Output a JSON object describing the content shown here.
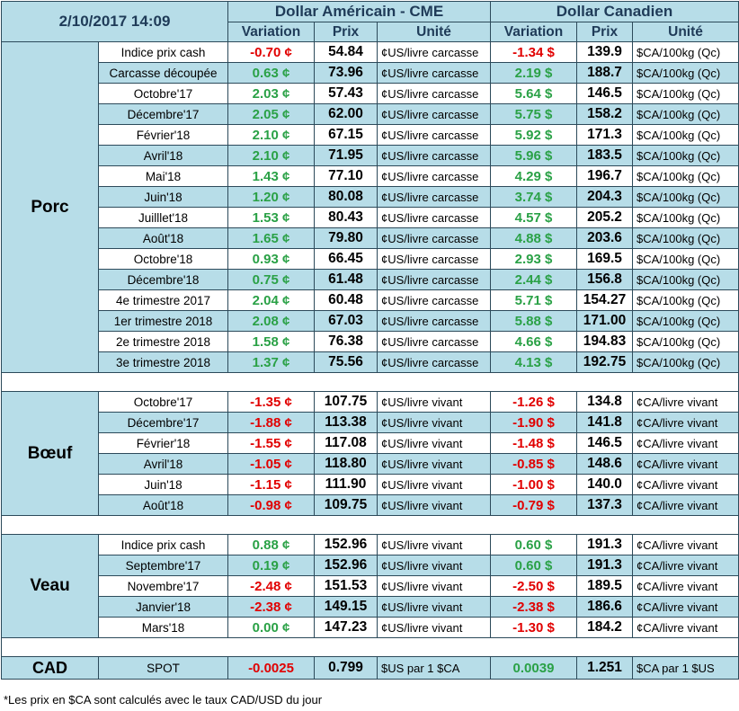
{
  "header": {
    "date": "2/10/2017 14:09",
    "usd_title": "Dollar Américain - CME",
    "cad_title": "Dollar Canadien",
    "col_variation": "Variation",
    "col_prix": "Prix",
    "col_unite": "Unité"
  },
  "sections": {
    "porc": {
      "name": "Porc",
      "rows": [
        {
          "label": "Indice prix cash",
          "usd_var": "-0.70 ¢",
          "usd_price": "54.84",
          "usd_unit": "¢US/livre carcasse",
          "cad_var": "-1.34 $",
          "cad_price": "139.9",
          "cad_unit": "$CA/100kg (Qc)"
        },
        {
          "label": "Carcasse découpée",
          "usd_var": "0.63 ¢",
          "usd_price": "73.96",
          "usd_unit": "¢US/livre carcasse",
          "cad_var": "2.19 $",
          "cad_price": "188.7",
          "cad_unit": "$CA/100kg (Qc)"
        },
        {
          "label": "Octobre'17",
          "usd_var": "2.03 ¢",
          "usd_price": "57.43",
          "usd_unit": "¢US/livre carcasse",
          "cad_var": "5.64 $",
          "cad_price": "146.5",
          "cad_unit": "$CA/100kg (Qc)"
        },
        {
          "label": "Décembre'17",
          "usd_var": "2.05 ¢",
          "usd_price": "62.00",
          "usd_unit": "¢US/livre carcasse",
          "cad_var": "5.75 $",
          "cad_price": "158.2",
          "cad_unit": "$CA/100kg (Qc)"
        },
        {
          "label": "Février'18",
          "usd_var": "2.10 ¢",
          "usd_price": "67.15",
          "usd_unit": "¢US/livre carcasse",
          "cad_var": "5.92 $",
          "cad_price": "171.3",
          "cad_unit": "$CA/100kg (Qc)"
        },
        {
          "label": "Avril'18",
          "usd_var": "2.10 ¢",
          "usd_price": "71.95",
          "usd_unit": "¢US/livre carcasse",
          "cad_var": "5.96 $",
          "cad_price": "183.5",
          "cad_unit": "$CA/100kg (Qc)"
        },
        {
          "label": "Mai'18",
          "usd_var": "1.43 ¢",
          "usd_price": "77.10",
          "usd_unit": "¢US/livre carcasse",
          "cad_var": "4.29 $",
          "cad_price": "196.7",
          "cad_unit": "$CA/100kg (Qc)"
        },
        {
          "label": "Juin'18",
          "usd_var": "1.20 ¢",
          "usd_price": "80.08",
          "usd_unit": "¢US/livre carcasse",
          "cad_var": "3.74 $",
          "cad_price": "204.3",
          "cad_unit": "$CA/100kg (Qc)"
        },
        {
          "label": "Juilllet'18",
          "usd_var": "1.53 ¢",
          "usd_price": "80.43",
          "usd_unit": "¢US/livre carcasse",
          "cad_var": "4.57 $",
          "cad_price": "205.2",
          "cad_unit": "$CA/100kg (Qc)"
        },
        {
          "label": "Août'18",
          "usd_var": "1.65 ¢",
          "usd_price": "79.80",
          "usd_unit": "¢US/livre carcasse",
          "cad_var": "4.88 $",
          "cad_price": "203.6",
          "cad_unit": "$CA/100kg (Qc)"
        },
        {
          "label": "Octobre'18",
          "usd_var": "0.93 ¢",
          "usd_price": "66.45",
          "usd_unit": "¢US/livre carcasse",
          "cad_var": "2.93 $",
          "cad_price": "169.5",
          "cad_unit": "$CA/100kg (Qc)"
        },
        {
          "label": "Décembre'18",
          "usd_var": "0.75 ¢",
          "usd_price": "61.48",
          "usd_unit": "¢US/livre carcasse",
          "cad_var": "2.44 $",
          "cad_price": "156.8",
          "cad_unit": "$CA/100kg (Qc)"
        },
        {
          "label": "4e trimestre 2017",
          "usd_var": "2.04 ¢",
          "usd_price": "60.48",
          "usd_unit": "¢US/livre carcasse",
          "cad_var": "5.71 $",
          "cad_price": "154.27",
          "cad_unit": "$CA/100kg (Qc)"
        },
        {
          "label": "1er trimestre 2018",
          "usd_var": "2.08 ¢",
          "usd_price": "67.03",
          "usd_unit": "¢US/livre carcasse",
          "cad_var": "5.88 $",
          "cad_price": "171.00",
          "cad_unit": "$CA/100kg (Qc)"
        },
        {
          "label": "2e trimestre 2018",
          "usd_var": "1.58 ¢",
          "usd_price": "76.38",
          "usd_unit": "¢US/livre carcasse",
          "cad_var": "4.66 $",
          "cad_price": "194.83",
          "cad_unit": "$CA/100kg (Qc)"
        },
        {
          "label": "3e trimestre 2018",
          "usd_var": "1.37 ¢",
          "usd_price": "75.56",
          "usd_unit": "¢US/livre carcasse",
          "cad_var": "4.13 $",
          "cad_price": "192.75",
          "cad_unit": "$CA/100kg (Qc)"
        }
      ]
    },
    "boeuf": {
      "name": "Bœuf",
      "rows": [
        {
          "label": "Octobre'17",
          "usd_var": "-1.35 ¢",
          "usd_price": "107.75",
          "usd_unit": "¢US/livre vivant",
          "cad_var": "-1.26 $",
          "cad_price": "134.8",
          "cad_unit": "¢CA/livre vivant"
        },
        {
          "label": "Décembre'17",
          "usd_var": "-1.88 ¢",
          "usd_price": "113.38",
          "usd_unit": "¢US/livre vivant",
          "cad_var": "-1.90 $",
          "cad_price": "141.8",
          "cad_unit": "¢CA/livre vivant"
        },
        {
          "label": "Février'18",
          "usd_var": "-1.55 ¢",
          "usd_price": "117.08",
          "usd_unit": "¢US/livre vivant",
          "cad_var": "-1.48 $",
          "cad_price": "146.5",
          "cad_unit": "¢CA/livre vivant"
        },
        {
          "label": "Avril'18",
          "usd_var": "-1.05 ¢",
          "usd_price": "118.80",
          "usd_unit": "¢US/livre vivant",
          "cad_var": "-0.85 $",
          "cad_price": "148.6",
          "cad_unit": "¢CA/livre vivant"
        },
        {
          "label": "Juin'18",
          "usd_var": "-1.15 ¢",
          "usd_price": "111.90",
          "usd_unit": "¢US/livre vivant",
          "cad_var": "-1.00 $",
          "cad_price": "140.0",
          "cad_unit": "¢CA/livre vivant"
        },
        {
          "label": "Août'18",
          "usd_var": "-0.98 ¢",
          "usd_price": "109.75",
          "usd_unit": "¢US/livre vivant",
          "cad_var": "-0.79 $",
          "cad_price": "137.3",
          "cad_unit": "¢CA/livre vivant"
        }
      ]
    },
    "veau": {
      "name": "Veau",
      "rows": [
        {
          "label": "Indice prix cash",
          "usd_var": "0.88 ¢",
          "usd_price": "152.96",
          "usd_unit": "¢US/livre vivant",
          "cad_var": "0.60 $",
          "cad_price": "191.3",
          "cad_unit": "¢CA/livre vivant"
        },
        {
          "label": "Septembre'17",
          "usd_var": "0.19 ¢",
          "usd_price": "152.96",
          "usd_unit": "¢US/livre vivant",
          "cad_var": "0.60 $",
          "cad_price": "191.3",
          "cad_unit": "¢CA/livre vivant"
        },
        {
          "label": "Novembre'17",
          "usd_var": "-2.48 ¢",
          "usd_price": "151.53",
          "usd_unit": "¢US/livre vivant",
          "cad_var": "-2.50 $",
          "cad_price": "189.5",
          "cad_unit": "¢CA/livre vivant"
        },
        {
          "label": "Janvier'18",
          "usd_var": "-2.38 ¢",
          "usd_price": "149.15",
          "usd_unit": "¢US/livre vivant",
          "cad_var": "-2.38 $",
          "cad_price": "186.6",
          "cad_unit": "¢CA/livre vivant"
        },
        {
          "label": "Mars'18",
          "usd_var": "0.00 ¢",
          "usd_price": "147.23",
          "usd_unit": "¢US/livre vivant",
          "cad_var": "-1.30 $",
          "cad_price": "184.2",
          "cad_unit": "¢CA/livre vivant"
        }
      ]
    },
    "cad": {
      "name": "CAD",
      "label": "SPOT",
      "usd_var": "-0.0025",
      "usd_price": "0.799",
      "usd_unit": "$US par 1 $CA",
      "cad_var": "0.0039",
      "cad_price": "1.251",
      "cad_unit": "$CA par 1 $US"
    }
  },
  "colors": {
    "positive": "#2aa146",
    "negative": "#e10000",
    "header_bg": "#b7dde8"
  },
  "footnote": "*Les  prix en $CA sont calculés avec le taux CAD/USD du jour"
}
